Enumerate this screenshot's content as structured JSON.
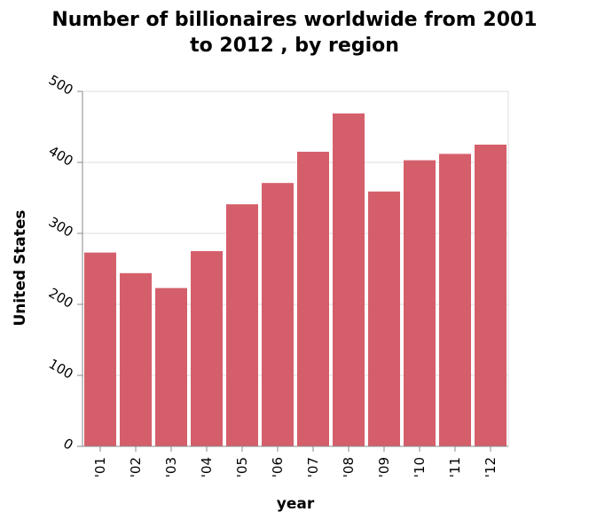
{
  "chart_data": {
    "type": "bar",
    "title_lines": [
      "Number of billionaires worldwide from 2001",
      "to 2012 , by region"
    ],
    "xlabel": "year",
    "ylabel": "United States",
    "categories": [
      "'01",
      "'02",
      "'03",
      "'04",
      "'05",
      "'06",
      "'07",
      "'08",
      "'09",
      "'10",
      "'11",
      "'12"
    ],
    "values": [
      273,
      244,
      223,
      275,
      341,
      371,
      415,
      469,
      359,
      403,
      412,
      425
    ],
    "ylim": [
      0,
      500
    ],
    "yticks": [
      0,
      100,
      200,
      300,
      400,
      500
    ],
    "grid": true,
    "bar_color": "#d45f6b",
    "grid_color": "#dddddd",
    "axis_color": "#888888"
  }
}
